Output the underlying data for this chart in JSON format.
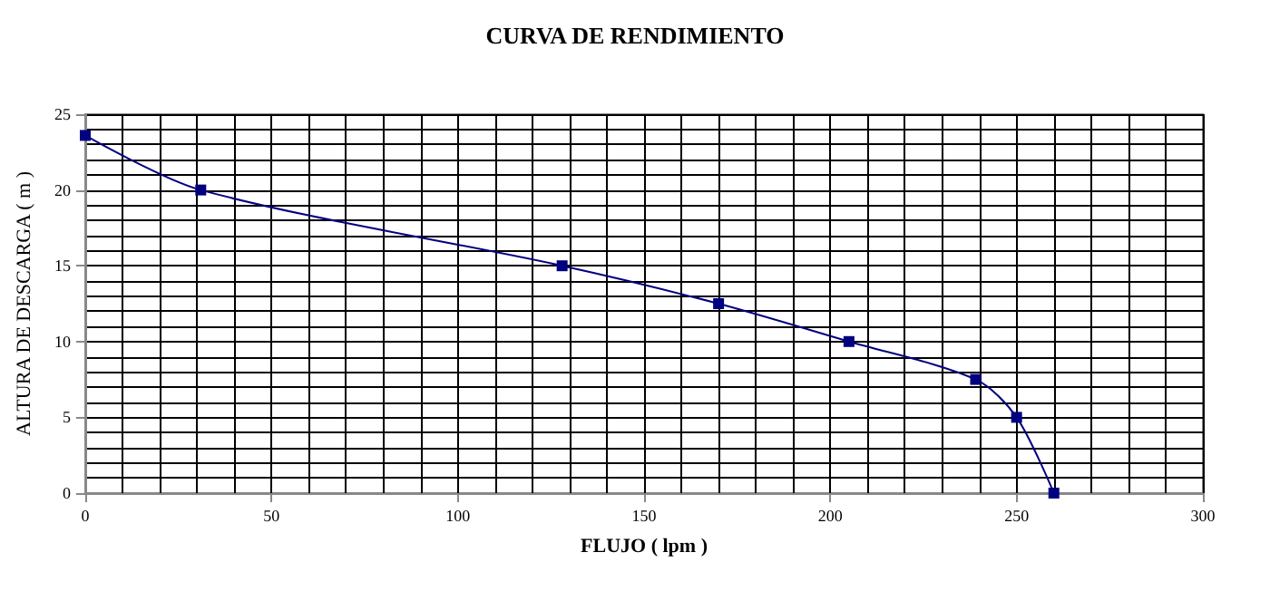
{
  "chart_data": {
    "type": "line",
    "title": "CURVA DE RENDIMIENTO",
    "xlabel": "FLUJO ( lpm )",
    "ylabel": "ALTURA DE DESCARGA ( m )",
    "x": [
      0,
      31,
      128,
      170,
      205,
      239,
      250,
      260
    ],
    "series": [
      {
        "color": "#000080",
        "values": [
          23.6,
          20,
          15,
          12.5,
          10,
          7.5,
          5,
          0
        ]
      }
    ],
    "xlim": [
      0,
      300
    ],
    "xticks": [
      0,
      50,
      100,
      150,
      200,
      250,
      300
    ],
    "ylim": [
      0,
      25
    ],
    "yticks": [
      0,
      5,
      10,
      15,
      20,
      25
    ],
    "grid": true,
    "marker": "square",
    "line_style": "solid"
  }
}
